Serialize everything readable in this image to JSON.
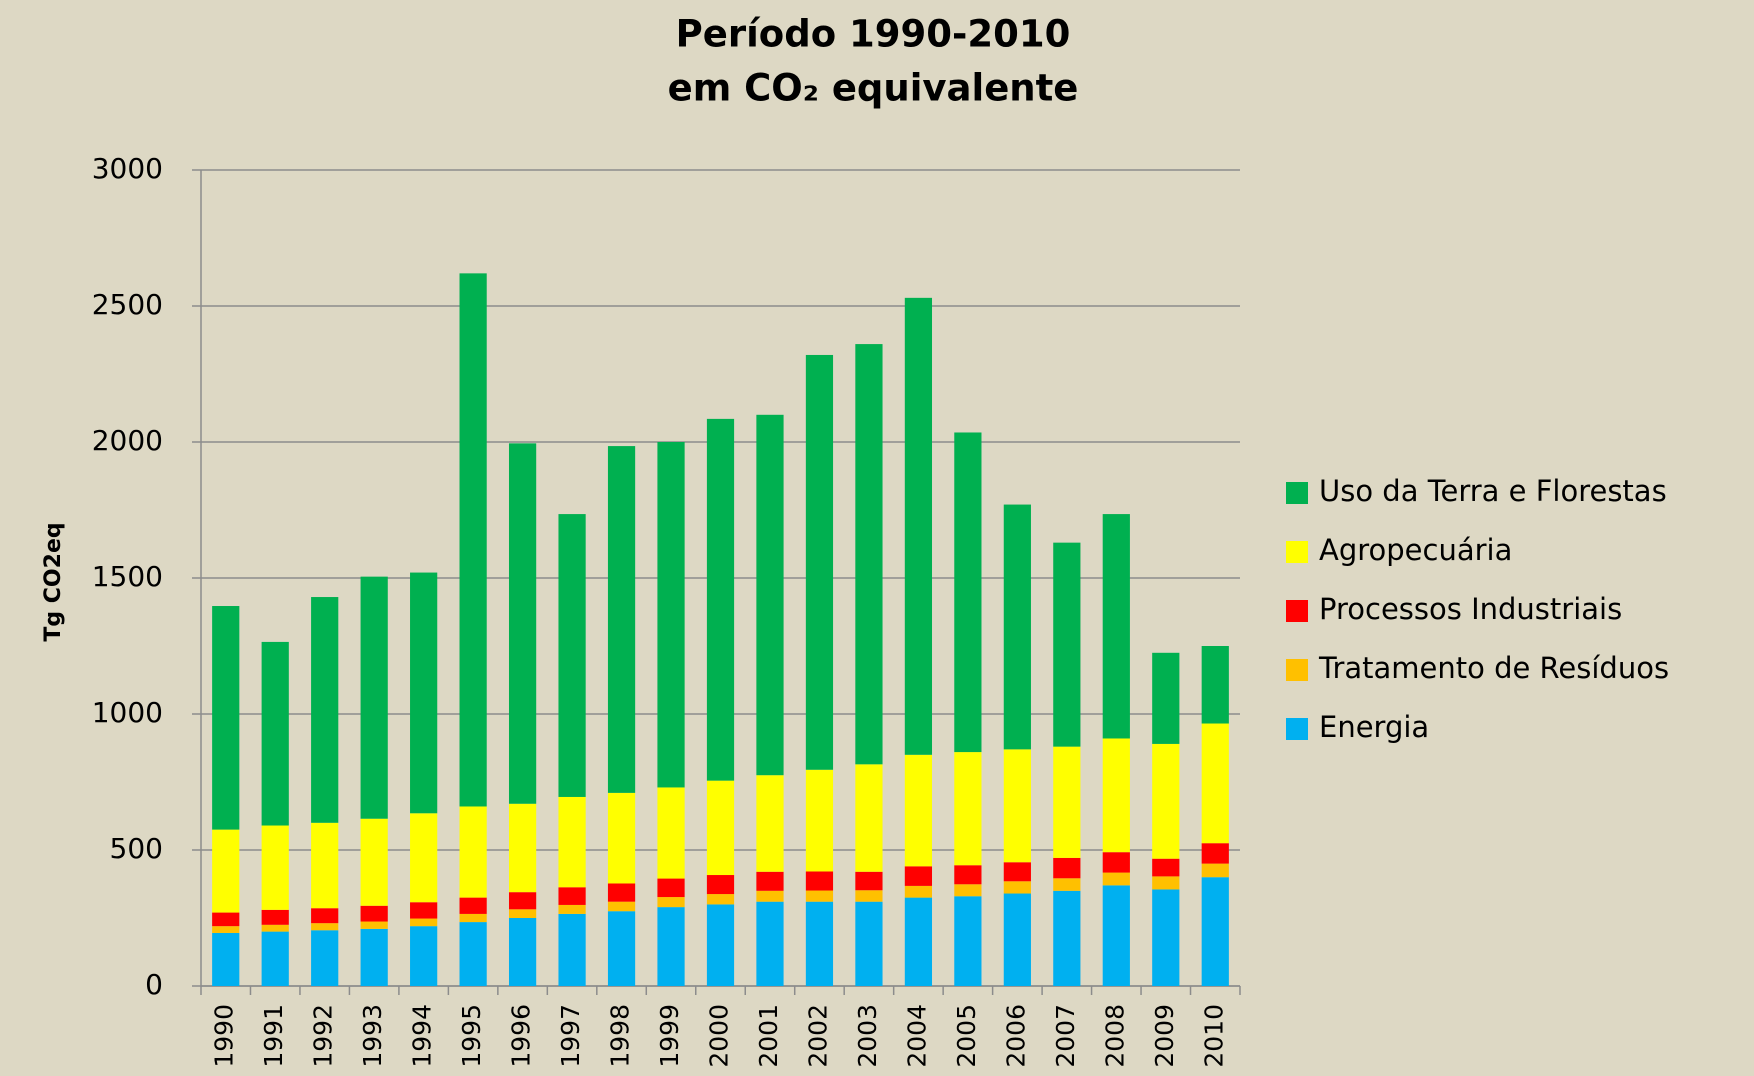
{
  "chart_data": {
    "type": "stacked_bar",
    "title": [
      "Período 1990-2010",
      "em CO₂ equivalente"
    ],
    "y_label": "Tg CO2eq",
    "categories": [
      "1990",
      "1991",
      "1992",
      "1993",
      "1994",
      "1995",
      "1996",
      "1997",
      "1998",
      "1999",
      "2000",
      "2001",
      "2002",
      "2003",
      "2004",
      "2005",
      "2006",
      "2007",
      "2008",
      "2009",
      "2010"
    ],
    "series": [
      {
        "name": "Energia",
        "color": "#00b0f0",
        "values": [
          195,
          200,
          205,
          210,
          220,
          235,
          250,
          265,
          275,
          290,
          300,
          310,
          310,
          310,
          325,
          330,
          340,
          350,
          370,
          355,
          400
        ]
      },
      {
        "name": "Tratamento de Resíduos",
        "color": "#ffc000",
        "values": [
          25,
          25,
          26,
          27,
          28,
          30,
          32,
          33,
          35,
          37,
          38,
          40,
          41,
          42,
          43,
          44,
          45,
          46,
          47,
          48,
          50
        ]
      },
      {
        "name": "Processos Industriais",
        "color": "#ff0000",
        "values": [
          50,
          55,
          55,
          58,
          60,
          60,
          63,
          65,
          67,
          68,
          70,
          70,
          70,
          68,
          72,
          70,
          70,
          75,
          75,
          65,
          75
        ]
      },
      {
        "name": "Agropecuária",
        "color": "#ffff00",
        "values": [
          305,
          310,
          314,
          320,
          327,
          335,
          325,
          332,
          333,
          335,
          347,
          355,
          374,
          395,
          410,
          416,
          415,
          409,
          418,
          422,
          440
        ]
      },
      {
        "name": "Uso da Terra e Florestas",
        "color": "#00b050",
        "values": [
          822,
          675,
          830,
          890,
          885,
          1960,
          1325,
          1040,
          1275,
          1270,
          1330,
          1325,
          1525,
          1545,
          1680,
          1175,
          900,
          750,
          825,
          335,
          285
        ]
      }
    ],
    "ylim": [
      0,
      3000
    ],
    "yticks": [
      0,
      500,
      1000,
      1500,
      2000,
      2500,
      3000
    ],
    "grid": true,
    "legend": "right"
  }
}
